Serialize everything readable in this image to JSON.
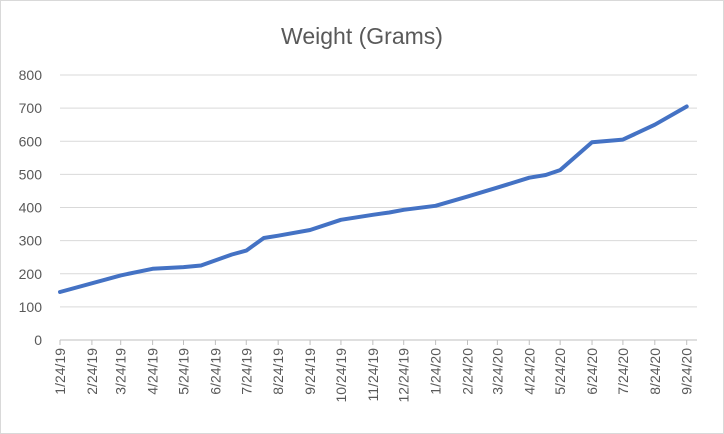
{
  "chart_data": {
    "type": "line",
    "title": "Weight (Grams)",
    "xlabel": "",
    "ylabel": "",
    "ylim": [
      0,
      800
    ],
    "yticks": [
      0,
      100,
      200,
      300,
      400,
      500,
      600,
      700,
      800
    ],
    "grid": true,
    "legend": "none",
    "line_color": "#4472c4",
    "x_tick_labels": [
      "1/24/19",
      "2/24/19",
      "3/24/19",
      "4/24/19",
      "5/24/19",
      "6/24/19",
      "7/24/19",
      "8/24/19",
      "9/24/19",
      "10/24/19",
      "11/24/19",
      "12/24/19",
      "1/24/20",
      "2/24/20",
      "3/24/20",
      "4/24/20",
      "5/24/20",
      "6/24/20",
      "7/24/20",
      "8/24/20",
      "9/24/20"
    ],
    "series": [
      {
        "x": [
          "2019-01-24",
          "2019-03-24",
          "2019-04-24",
          "2019-05-24",
          "2019-06-10",
          "2019-07-10",
          "2019-07-24",
          "2019-08-10",
          "2019-08-24",
          "2019-09-24",
          "2019-10-24",
          "2019-11-24",
          "2019-12-10",
          "2019-12-24",
          "2020-01-24",
          "2020-02-24",
          "2020-03-24",
          "2020-04-24",
          "2020-05-10",
          "2020-05-24",
          "2020-06-24",
          "2020-07-24",
          "2020-08-24",
          "2020-09-24"
        ],
        "values": [
          145,
          195,
          215,
          220,
          225,
          258,
          270,
          308,
          315,
          332,
          363,
          378,
          385,
          393,
          405,
          433,
          460,
          490,
          498,
          513,
          597,
          605,
          650,
          705
        ]
      }
    ]
  }
}
